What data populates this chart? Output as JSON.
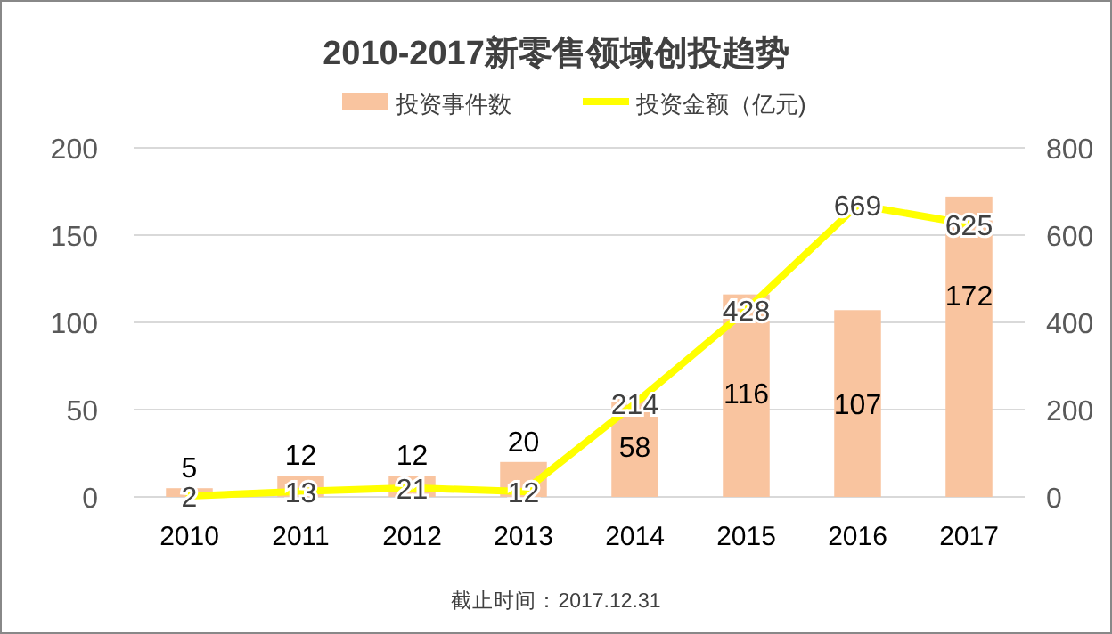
{
  "chart_data": {
    "type": "bar",
    "title": "2010-2017新零售领域创投趋势",
    "categories": [
      "2010",
      "2011",
      "2012",
      "2013",
      "2014",
      "2015",
      "2016",
      "2017"
    ],
    "series": [
      {
        "name": "投资事件数",
        "color": "#f9c49f",
        "values": [
          5,
          12,
          12,
          20,
          58,
          116,
          107,
          172
        ]
      },
      {
        "name": "投资金额（亿元)",
        "type": "line",
        "axis": "y2",
        "color": "#ffff00",
        "values": [
          2,
          13,
          21,
          12,
          214,
          428,
          669,
          625
        ]
      }
    ],
    "ylim": [
      0,
      200
    ],
    "yticks": [
      0,
      50,
      100,
      150,
      200
    ],
    "y2lim": [
      0,
      800
    ],
    "y2ticks": [
      0,
      200,
      400,
      600,
      800
    ],
    "grid": "y",
    "legend": "top",
    "marker": "none",
    "data_labels": true,
    "annotations": [
      "截止时间：2017.12.31"
    ]
  }
}
